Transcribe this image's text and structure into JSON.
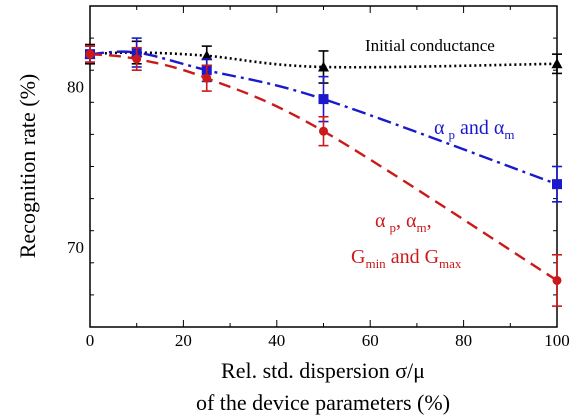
{
  "chart_data": {
    "type": "line",
    "ylabel": "Recognition rate (%)",
    "xlabel_line1": "Rel. std. dispersion σ/μ",
    "xlabel_line2": "of the device parameters (%)",
    "xlim": [
      0,
      100
    ],
    "ylim": [
      65,
      85
    ],
    "xticks": [
      0,
      20,
      40,
      60,
      80,
      100
    ],
    "yticks": [
      70,
      80
    ],
    "grid": false,
    "series": [
      {
        "name": "Initial conductance",
        "color": "#000000",
        "marker": "triangle",
        "linestyle": "dotted",
        "x": [
          0,
          10,
          25,
          50,
          100
        ],
        "y": [
          82.0,
          82.1,
          81.9,
          81.2,
          81.4
        ],
        "err": [
          0.6,
          0.7,
          0.6,
          1.0,
          0.6
        ]
      },
      {
        "name": "α_p and α_m",
        "color": "#1a1acc",
        "marker": "square",
        "linestyle": "dashdot",
        "x": [
          0,
          10,
          25,
          50,
          100
        ],
        "y": [
          82.0,
          82.1,
          81.0,
          79.2,
          73.9
        ],
        "err": [
          0.5,
          0.9,
          0.7,
          1.4,
          1.1
        ]
      },
      {
        "name": "α_p, α_m, G_min and G_max",
        "color": "#cc1a1a",
        "marker": "circle",
        "linestyle": "dashed",
        "x": [
          0,
          10,
          25,
          50,
          100
        ],
        "y": [
          82.0,
          81.7,
          80.5,
          77.2,
          67.9
        ],
        "err": [
          0.5,
          0.7,
          0.8,
          0.9,
          1.6
        ]
      }
    ],
    "annotations": {
      "initial": "Initial conductance",
      "blue_alpha1": "α",
      "blue_sub1": "p",
      "blue_and": " and α",
      "blue_sub2": "m",
      "red_alpha1": "α",
      "red_sub1": "p",
      "red_comma": ", α",
      "red_sub2": "m",
      "red_comma2": ",",
      "red_g1": "G",
      "red_gsub1": "min",
      "red_and": " and G",
      "red_gsub2": "max"
    }
  }
}
